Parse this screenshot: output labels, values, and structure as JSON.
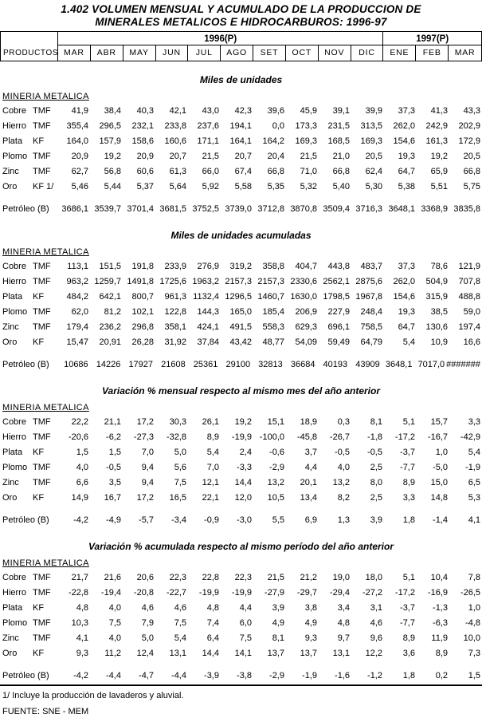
{
  "title": {
    "line1": "1.402 VOLUMEN MENSUAL Y ACUMULADO DE LA PRODUCCION DE",
    "line2": "MINERALES METALICOS E HIDROCARBUROS: 1996-97"
  },
  "header": {
    "products_label": "PRODUCTOS",
    "year_groups": [
      {
        "label": "1996(P)",
        "span": 10
      },
      {
        "label": "1997(P)",
        "span": 3
      }
    ],
    "months": [
      "MAR",
      "ABR",
      "MAY",
      "JUN",
      "JUL",
      "AGO",
      "SET",
      "OCT",
      "NOV",
      "DIC",
      "ENE",
      "FEB",
      "MAR"
    ]
  },
  "sections": [
    {
      "heading": "Miles de unidades",
      "group_label": "MINERIA METALICA",
      "rows": [
        {
          "product": "Cobre",
          "unit": "TMF",
          "values": [
            "41,9",
            "38,4",
            "40,3",
            "42,1",
            "43,0",
            "42,3",
            "39,6",
            "45,9",
            "39,1",
            "39,9",
            "37,3",
            "41,3",
            "43,3"
          ]
        },
        {
          "product": "Hierro",
          "unit": "TMF",
          "values": [
            "355,4",
            "296,5",
            "232,1",
            "233,8",
            "237,6",
            "194,1",
            "0,0",
            "173,3",
            "231,5",
            "313,5",
            "262,0",
            "242,9",
            "202,9"
          ]
        },
        {
          "product": "Plata",
          "unit": "KF",
          "values": [
            "164,0",
            "157,9",
            "158,6",
            "160,6",
            "171,1",
            "164,1",
            "164,2",
            "169,3",
            "168,5",
            "169,3",
            "154,6",
            "161,3",
            "172,9"
          ]
        },
        {
          "product": "Plomo",
          "unit": "TMF",
          "values": [
            "20,9",
            "19,2",
            "20,9",
            "20,7",
            "21,5",
            "20,7",
            "20,4",
            "21,5",
            "21,0",
            "20,5",
            "19,3",
            "19,2",
            "20,5"
          ]
        },
        {
          "product": "Zinc",
          "unit": "TMF",
          "values": [
            "62,7",
            "56,8",
            "60,6",
            "61,3",
            "66,0",
            "67,4",
            "66,8",
            "71,0",
            "66,8",
            "62,4",
            "64,7",
            "65,9",
            "66,8"
          ]
        },
        {
          "product": "Oro",
          "unit": "KF 1/",
          "values": [
            "5,46",
            "5,44",
            "5,37",
            "5,64",
            "5,92",
            "5,58",
            "5,35",
            "5,32",
            "5,40",
            "5,30",
            "5,38",
            "5,51",
            "5,75"
          ]
        }
      ],
      "petroleo_row": {
        "product": "Petróleo (B)",
        "values": [
          "3686,1",
          "3539,7",
          "3701,4",
          "3681,5",
          "3752,5",
          "3739,0",
          "3712,8",
          "3870,8",
          "3509,4",
          "3716,3",
          "3648,1",
          "3368,9",
          "3835,8"
        ]
      }
    },
    {
      "heading": "Miles de unidades acumuladas",
      "group_label": "MINERIA METALICA",
      "rows": [
        {
          "product": "Cobre",
          "unit": "TMF",
          "values": [
            "113,1",
            "151,5",
            "191,8",
            "233,9",
            "276,9",
            "319,2",
            "358,8",
            "404,7",
            "443,8",
            "483,7",
            "37,3",
            "78,6",
            "121,9"
          ]
        },
        {
          "product": "Hierro",
          "unit": "TMF",
          "values": [
            "963,2",
            "1259,7",
            "1491,8",
            "1725,6",
            "1963,2",
            "2157,3",
            "2157,3",
            "2330,6",
            "2562,1",
            "2875,6",
            "262,0",
            "504,9",
            "707,8"
          ]
        },
        {
          "product": "Plata",
          "unit": "KF",
          "values": [
            "484,2",
            "642,1",
            "800,7",
            "961,3",
            "1132,4",
            "1296,5",
            "1460,7",
            "1630,0",
            "1798,5",
            "1967,8",
            "154,6",
            "315,9",
            "488,8"
          ]
        },
        {
          "product": "Plomo",
          "unit": "TMF",
          "values": [
            "62,0",
            "81,2",
            "102,1",
            "122,8",
            "144,3",
            "165,0",
            "185,4",
            "206,9",
            "227,9",
            "248,4",
            "19,3",
            "38,5",
            "59,0"
          ]
        },
        {
          "product": "Zinc",
          "unit": "TMF",
          "values": [
            "179,4",
            "236,2",
            "296,8",
            "358,1",
            "424,1",
            "491,5",
            "558,3",
            "629,3",
            "696,1",
            "758,5",
            "64,7",
            "130,6",
            "197,4"
          ]
        },
        {
          "product": "Oro",
          "unit": "KF",
          "values": [
            "15,47",
            "20,91",
            "26,28",
            "31,92",
            "37,84",
            "43,42",
            "48,77",
            "54,09",
            "59,49",
            "64,79",
            "5,4",
            "10,9",
            "16,6"
          ]
        }
      ],
      "petroleo_row": {
        "product": "Petróleo (B)",
        "values": [
          "10686",
          "14226",
          "17927",
          "21608",
          "25361",
          "29100",
          "32813",
          "36684",
          "40193",
          "43909",
          "3648,1",
          "7017,0",
          "#######"
        ]
      }
    },
    {
      "heading": "Variación % mensual respecto al mismo mes del año anterior",
      "group_label": "MINERIA METALICA",
      "rows": [
        {
          "product": "Cobre",
          "unit": "TMF",
          "values": [
            "22,2",
            "21,1",
            "17,2",
            "30,3",
            "26,1",
            "19,2",
            "15,1",
            "18,9",
            "0,3",
            "8,1",
            "5,1",
            "15,7",
            "3,3"
          ]
        },
        {
          "product": "Hierro",
          "unit": "TMF",
          "values": [
            "-20,6",
            "-6,2",
            "-27,3",
            "-32,8",
            "8,9",
            "-19,9",
            "-100,0",
            "-45,8",
            "-26,7",
            "-1,8",
            "-17,2",
            "-16,7",
            "-42,9"
          ]
        },
        {
          "product": "Plata",
          "unit": "KF",
          "values": [
            "1,5",
            "1,5",
            "7,0",
            "5,0",
            "5,4",
            "2,4",
            "-0,6",
            "3,7",
            "-0,5",
            "-0,5",
            "-3,7",
            "1,0",
            "5,4"
          ]
        },
        {
          "product": "Plomo",
          "unit": "TMF",
          "values": [
            "4,0",
            "-0,5",
            "9,4",
            "5,6",
            "7,0",
            "-3,3",
            "-2,9",
            "4,4",
            "4,0",
            "2,5",
            "-7,7",
            "-5,0",
            "-1,9"
          ]
        },
        {
          "product": "Zinc",
          "unit": "TMF",
          "values": [
            "6,6",
            "3,5",
            "9,4",
            "7,5",
            "12,1",
            "14,4",
            "13,2",
            "20,1",
            "13,2",
            "8,0",
            "8,9",
            "15,0",
            "6,5"
          ]
        },
        {
          "product": "Oro",
          "unit": "KF",
          "values": [
            "14,9",
            "16,7",
            "17,2",
            "16,5",
            "22,1",
            "12,0",
            "10,5",
            "13,4",
            "8,2",
            "2,5",
            "3,3",
            "14,8",
            "5,3"
          ]
        }
      ],
      "petroleo_row": {
        "product": "Petróleo (B)",
        "values": [
          "-4,2",
          "-4,9",
          "-5,7",
          "-3,4",
          "-0,9",
          "-3,0",
          "5,5",
          "6,9",
          "1,3",
          "3,9",
          "1,8",
          "-1,4",
          "4,1"
        ]
      }
    },
    {
      "heading": "Variación % acumulada respecto al mismo período del año anterior",
      "group_label": "MINERIA METALICA",
      "rows": [
        {
          "product": "Cobre",
          "unit": "TMF",
          "values": [
            "21,7",
            "21,6",
            "20,6",
            "22,3",
            "22,8",
            "22,3",
            "21,5",
            "21,2",
            "19,0",
            "18,0",
            "5,1",
            "10,4",
            "7,8"
          ]
        },
        {
          "product": "Hierro",
          "unit": "TMF",
          "values": [
            "-22,8",
            "-19,4",
            "-20,8",
            "-22,7",
            "-19,9",
            "-19,9",
            "-27,9",
            "-29,7",
            "-29,4",
            "-27,2",
            "-17,2",
            "-16,9",
            "-26,5"
          ]
        },
        {
          "product": "Plata",
          "unit": "KF",
          "values": [
            "4,8",
            "4,0",
            "4,6",
            "4,6",
            "4,8",
            "4,4",
            "3,9",
            "3,8",
            "3,4",
            "3,1",
            "-3,7",
            "-1,3",
            "1,0"
          ]
        },
        {
          "product": "Plomo",
          "unit": "TMF",
          "values": [
            "10,3",
            "7,5",
            "7,9",
            "7,5",
            "7,4",
            "6,0",
            "4,9",
            "4,9",
            "4,8",
            "4,6",
            "-7,7",
            "-6,3",
            "-4,8"
          ]
        },
        {
          "product": "Zinc",
          "unit": "TMF",
          "values": [
            "4,1",
            "4,0",
            "5,0",
            "5,4",
            "6,4",
            "7,5",
            "8,1",
            "9,3",
            "9,7",
            "9,6",
            "8,9",
            "11,9",
            "10,0"
          ]
        },
        {
          "product": "Oro",
          "unit": "KF",
          "values": [
            "9,3",
            "11,2",
            "12,4",
            "13,1",
            "14,4",
            "14,1",
            "13,7",
            "13,7",
            "13,1",
            "12,2",
            "3,6",
            "8,9",
            "7,3"
          ]
        }
      ],
      "petroleo_row": {
        "product": "Petróleo (B)",
        "values": [
          "-4,2",
          "-4,4",
          "-4,7",
          "-4,4",
          "-3,9",
          "-3,8",
          "-2,9",
          "-1,9",
          "-1,6",
          "-1,2",
          "1,8",
          "0,2",
          "1,5"
        ]
      }
    }
  ],
  "footnotes": [
    "1/ Incluye la producción de lavaderos y aluvial.",
    "FUENTE: SNE - MEM"
  ]
}
